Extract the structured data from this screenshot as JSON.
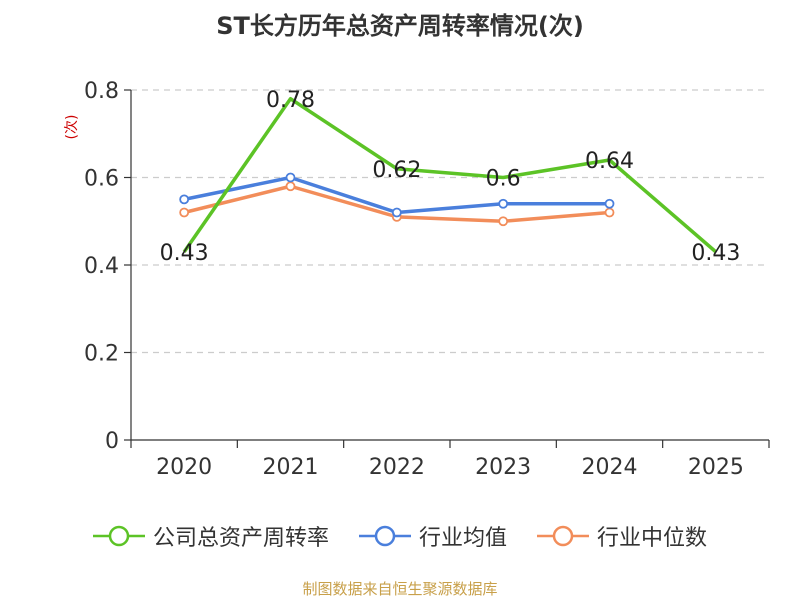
{
  "chart_data": {
    "type": "line",
    "title": "ST长方历年总资产周转率情况(次)",
    "ylabel": "(次)",
    "xlabel": "",
    "categories": [
      "2020",
      "2021",
      "2022",
      "2023",
      "2024",
      "2025"
    ],
    "ylim": [
      0,
      0.8
    ],
    "yticks": [
      "0",
      "0.2",
      "0.4",
      "0.6",
      "0.8"
    ],
    "grid": true,
    "legend_position": "bottom",
    "series": [
      {
        "name": "公司总资产周转率",
        "color": "#5cc326",
        "values": [
          0.43,
          0.78,
          0.62,
          0.6,
          0.64,
          0.43
        ],
        "labels": [
          "0.43",
          "0.78",
          "0.62",
          "0.6",
          "0.64",
          "0.43"
        ]
      },
      {
        "name": "行业均值",
        "color": "#4a7fdc",
        "values": [
          0.55,
          0.6,
          0.52,
          0.54,
          0.54,
          null
        ]
      },
      {
        "name": "行业中位数",
        "color": "#f28d5a",
        "values": [
          0.52,
          0.58,
          0.51,
          0.5,
          0.52,
          null
        ]
      }
    ],
    "source": "制图数据来自恒生聚源数据库"
  }
}
